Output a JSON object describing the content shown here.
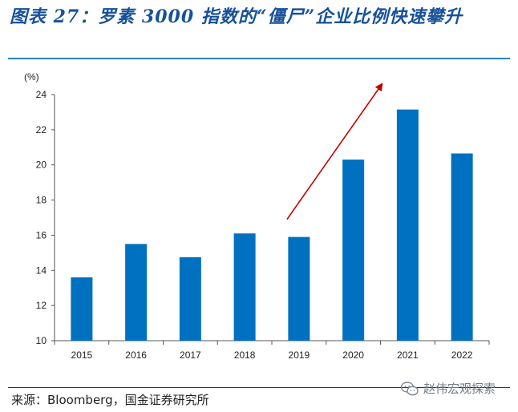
{
  "header": {
    "title": "图表 27：罗素 3000 指数的“僵尸”企业比例快速攀升"
  },
  "chart_data": {
    "type": "bar",
    "ylabel": "(%)",
    "categories": [
      "2015",
      "2016",
      "2017",
      "2018",
      "2019",
      "2020",
      "2021",
      "2022"
    ],
    "values": [
      13.6,
      15.5,
      14.75,
      16.1,
      15.9,
      20.3,
      23.15,
      20.65
    ],
    "ylim": [
      10,
      24
    ],
    "yticks": [
      10,
      12,
      14,
      16,
      18,
      20,
      22,
      24
    ],
    "grid": false,
    "bar_color": "#0070c0",
    "annotation": {
      "type": "arrow",
      "color": "#c00000",
      "from": [
        "2019",
        16.9
      ],
      "to": [
        "2021",
        24.6
      ]
    }
  },
  "footer": {
    "source": "来源：Bloomberg，国金证券研究所",
    "watermark": "赵伟宏观探索"
  },
  "colors": {
    "title": "#17519a",
    "rule": "#2a82c6",
    "bar": "#0070c0",
    "arrow": "#c00000"
  },
  "icons": {
    "watermark": "wechat-icon"
  }
}
